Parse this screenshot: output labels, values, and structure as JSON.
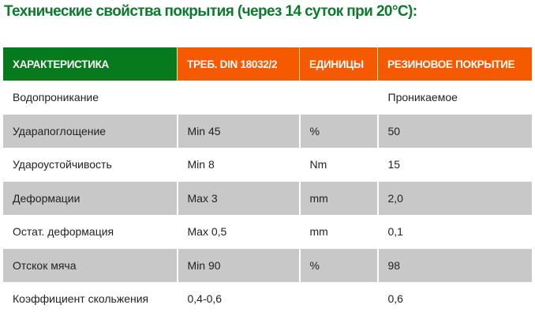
{
  "title": "Технические свойства покрытия (через 14 суток при 20°C):",
  "colors": {
    "header_green": "#087a1e",
    "header_orange": "#f55a00",
    "row_gray": "#c8c8c8",
    "title_green": "#0b7a2b"
  },
  "table": {
    "headers": [
      "ХАРАКТЕРИСТИКА",
      "ТРЕБ. DIN 18032/2",
      "ЕДИНИЦЫ",
      "РЕЗИНОВОЕ ПОКРЫТИЕ"
    ],
    "rows": [
      [
        "Водопроникание",
        "",
        "",
        "Проникаемое"
      ],
      [
        "Удара­поглощение",
        "Min 45",
        "%",
        "50"
      ],
      [
        "Удароустойчивость",
        "Min 8",
        "Nm",
        "15"
      ],
      [
        "Деформации",
        "Max 3",
        "mm",
        "2,0"
      ],
      [
        "Остат. деформация",
        "Max 0,5",
        "mm",
        "0,1"
      ],
      [
        "Отскок мяча",
        "Min 90",
        "%",
        "98"
      ],
      [
        "Коэффициент скольжения",
        "0,4-0,6",
        "",
        "0,6"
      ]
    ]
  }
}
